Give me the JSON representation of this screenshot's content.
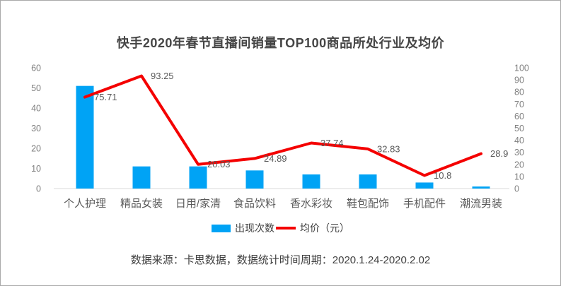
{
  "title": "快手2020年春节直播间销量TOP100商品所处行业及均价",
  "legend": {
    "bars_label": "出现次数",
    "line_label": "均价（元）"
  },
  "source_note": "数据来源：卡思数据，数据统计时间周期：2020.1.24-2020.2.02",
  "colors": {
    "bar": "#00a3f5",
    "line": "#f40000",
    "axis_line": "#d9d9d9",
    "tick_text": "#7f7f7f",
    "label_text": "#595959"
  },
  "chart_data": {
    "type": "bar",
    "subtype": "combo-bar-line-dual-axis",
    "title": "快手2020年春节直播间销量TOP100商品所处行业及均价",
    "categories": [
      "个人护理",
      "精品女装",
      "日用/家清",
      "食品饮料",
      "香水彩妆",
      "鞋包配饰",
      "手机配件",
      "潮流男装"
    ],
    "series": [
      {
        "name": "出现次数",
        "type": "bar",
        "axis": "left",
        "values": [
          51,
          11,
          11,
          9,
          7,
          7,
          3,
          1
        ]
      },
      {
        "name": "均价（元）",
        "type": "line",
        "axis": "right",
        "values": [
          75.71,
          93.25,
          20.03,
          24.89,
          37.74,
          32.83,
          10.8,
          28.9
        ],
        "point_labels": [
          "75.71",
          "93.25",
          "20.03",
          "24.89",
          "37.74",
          "32.83",
          "10.8",
          "28.9"
        ]
      }
    ],
    "left_axis": {
      "min": 0,
      "max": 60,
      "step": 10,
      "ticks": [
        0,
        10,
        20,
        30,
        40,
        50,
        60
      ]
    },
    "right_axis": {
      "min": 0,
      "max": 100,
      "step": 10,
      "ticks": [
        0,
        10,
        20,
        30,
        40,
        50,
        60,
        70,
        80,
        90,
        100
      ]
    },
    "grid": false,
    "legend_position": "bottom",
    "xlabel": "",
    "ylabel": ""
  }
}
